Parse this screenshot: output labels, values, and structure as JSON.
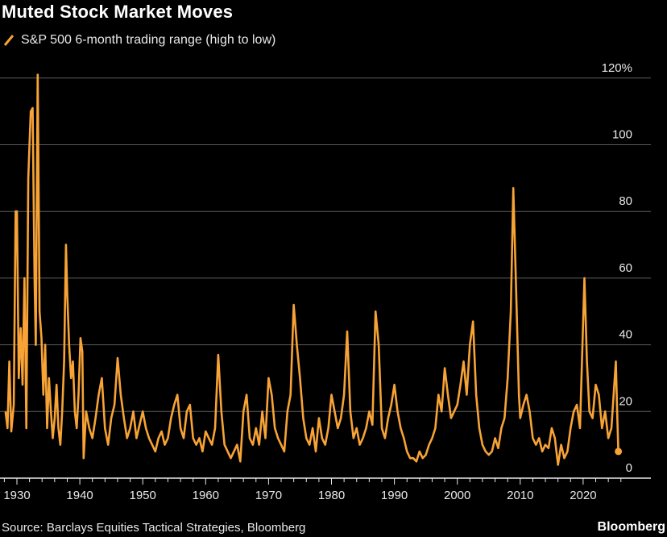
{
  "title": "Muted Stock Market Moves",
  "source": "Source: Barclays Equities Tactical Strategies, Bloomberg",
  "brand": "Bloomberg",
  "chart_data": {
    "type": "line",
    "title": "Muted Stock Market Moves",
    "xlabel": "",
    "ylabel": "",
    "xlim": [
      1928,
      2027
    ],
    "ylim": [
      0,
      120
    ],
    "y_ticks": [
      0,
      20,
      40,
      60,
      80,
      100,
      120
    ],
    "y_tick_labels": [
      "0",
      "20",
      "40",
      "60",
      "80",
      "100",
      "120%"
    ],
    "x_ticks": [
      1930,
      1940,
      1950,
      1960,
      1970,
      1980,
      1990,
      2000,
      2010,
      2020
    ],
    "x_tick_labels": [
      "1930",
      "1940",
      "1950",
      "1960",
      "1970",
      "1980",
      "1990",
      "2000",
      "2010",
      "2020"
    ],
    "grid": true,
    "y_axis_side": "right",
    "legend_placement": "top-left",
    "series": [
      {
        "name": "S&P 500 6-month trading range (high to low)",
        "color": "#f7a336",
        "x": [
          1928.2,
          1928.5,
          1928.8,
          1929.1,
          1929.5,
          1929.8,
          1930.0,
          1930.3,
          1930.6,
          1930.9,
          1931.2,
          1931.5,
          1931.8,
          1932.0,
          1932.2,
          1932.5,
          1932.8,
          1933.0,
          1933.3,
          1933.6,
          1933.9,
          1934.2,
          1934.5,
          1934.8,
          1935.1,
          1935.4,
          1935.7,
          1936.0,
          1936.3,
          1936.6,
          1936.9,
          1937.2,
          1937.5,
          1937.8,
          1938.0,
          1938.3,
          1938.6,
          1938.9,
          1939.2,
          1939.5,
          1939.8,
          1940.1,
          1940.4,
          1940.6,
          1941.0,
          1941.5,
          1942.0,
          1942.5,
          1943.0,
          1943.5,
          1944.0,
          1944.5,
          1945.0,
          1945.5,
          1946.0,
          1946.5,
          1947.0,
          1947.5,
          1948.0,
          1948.5,
          1949.0,
          1949.5,
          1950.0,
          1950.5,
          1951.0,
          1951.5,
          1952.0,
          1952.5,
          1953.0,
          1953.5,
          1954.0,
          1954.5,
          1955.0,
          1955.5,
          1956.0,
          1956.5,
          1957.0,
          1957.5,
          1958.0,
          1958.5,
          1959.0,
          1959.5,
          1960.0,
          1960.5,
          1961.0,
          1961.5,
          1962.0,
          1962.5,
          1963.0,
          1963.5,
          1964.0,
          1964.5,
          1965.0,
          1965.5,
          1966.0,
          1966.5,
          1967.0,
          1967.5,
          1968.0,
          1968.5,
          1969.0,
          1969.5,
          1970.0,
          1970.5,
          1971.0,
          1971.5,
          1972.0,
          1972.5,
          1973.0,
          1973.5,
          1974.0,
          1974.5,
          1975.0,
          1975.5,
          1976.0,
          1976.5,
          1977.0,
          1977.5,
          1978.0,
          1978.5,
          1979.0,
          1979.5,
          1980.0,
          1980.5,
          1981.0,
          1981.5,
          1982.0,
          1982.5,
          1983.0,
          1983.5,
          1984.0,
          1984.5,
          1985.0,
          1985.5,
          1986.0,
          1986.5,
          1987.0,
          1987.5,
          1988.0,
          1988.5,
          1989.0,
          1989.5,
          1990.0,
          1990.5,
          1991.0,
          1991.5,
          1992.0,
          1992.5,
          1993.0,
          1993.5,
          1994.0,
          1994.5,
          1995.0,
          1995.5,
          1996.0,
          1996.5,
          1997.0,
          1997.5,
          1998.0,
          1998.5,
          1999.0,
          1999.5,
          2000.0,
          2000.5,
          2001.0,
          2001.5,
          2002.0,
          2002.5,
          2003.0,
          2003.5,
          2004.0,
          2004.5,
          2005.0,
          2005.5,
          2006.0,
          2006.5,
          2007.0,
          2007.5,
          2008.0,
          2008.5,
          2008.9,
          2009.3,
          2009.8,
          2010.0,
          2010.5,
          2011.0,
          2011.5,
          2012.0,
          2012.5,
          2013.0,
          2013.5,
          2014.0,
          2014.5,
          2015.0,
          2015.5,
          2016.0,
          2016.5,
          2017.0,
          2017.5,
          2018.0,
          2018.5,
          2019.0,
          2019.5,
          2020.2,
          2020.6,
          2021.0,
          2021.5,
          2022.0,
          2022.5,
          2023.0,
          2023.5,
          2024.0,
          2024.5,
          2025.2,
          2025.4,
          2025.6
        ],
        "values": [
          20,
          15,
          35,
          14,
          22,
          80,
          80,
          30,
          45,
          28,
          60,
          15,
          90,
          100,
          110,
          111,
          60,
          40,
          121,
          50,
          42,
          25,
          40,
          15,
          30,
          20,
          12,
          18,
          28,
          15,
          10,
          20,
          35,
          70,
          55,
          40,
          30,
          35,
          20,
          15,
          25,
          42,
          38,
          6,
          20,
          15,
          12,
          18,
          25,
          30,
          15,
          10,
          18,
          22,
          36,
          25,
          18,
          12,
          15,
          20,
          12,
          16,
          20,
          15,
          12,
          10,
          8,
          12,
          14,
          10,
          12,
          18,
          22,
          25,
          15,
          12,
          20,
          22,
          12,
          10,
          12,
          8,
          14,
          12,
          10,
          15,
          37,
          20,
          10,
          8,
          6,
          8,
          10,
          5,
          20,
          25,
          12,
          10,
          15,
          10,
          20,
          12,
          30,
          25,
          15,
          12,
          10,
          8,
          20,
          25,
          52,
          40,
          30,
          18,
          12,
          10,
          15,
          8,
          18,
          12,
          10,
          15,
          25,
          20,
          15,
          18,
          25,
          44,
          20,
          12,
          15,
          10,
          12,
          15,
          20,
          16,
          50,
          40,
          15,
          12,
          18,
          22,
          28,
          20,
          15,
          12,
          8,
          6,
          6,
          5,
          8,
          6,
          7,
          10,
          12,
          15,
          25,
          20,
          33,
          25,
          18,
          20,
          22,
          28,
          35,
          25,
          40,
          47,
          25,
          15,
          10,
          8,
          7,
          8,
          12,
          9,
          15,
          18,
          30,
          50,
          87,
          60,
          25,
          18,
          22,
          25,
          20,
          12,
          10,
          12,
          8,
          10,
          9,
          15,
          12,
          4,
          10,
          6,
          8,
          15,
          20,
          22,
          15,
          60,
          35,
          20,
          18,
          28,
          25,
          15,
          20,
          12,
          15,
          35,
          20,
          8
        ]
      }
    ]
  }
}
